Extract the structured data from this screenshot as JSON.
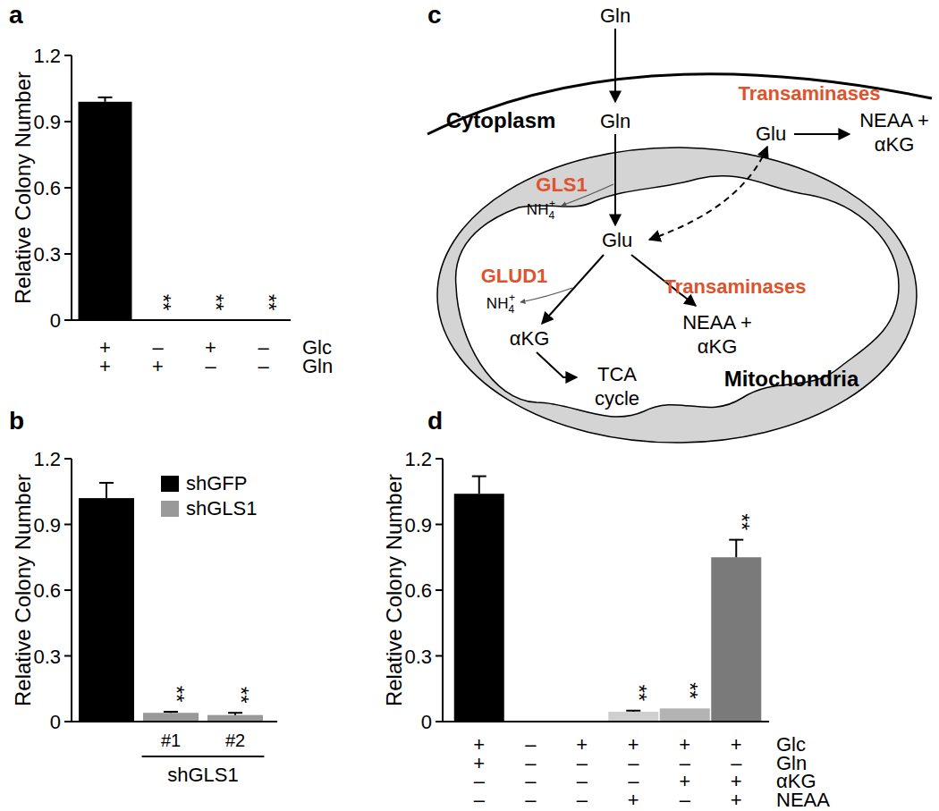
{
  "chart_data": [
    {
      "panel": "a",
      "type": "bar",
      "y_label": "Relative Colony Number",
      "categories": [
        null,
        null,
        null,
        null
      ],
      "values": [
        0.99,
        0,
        0,
        0
      ],
      "errors": [
        0.02,
        null,
        null,
        null
      ],
      "significance": [
        null,
        "**",
        "**",
        "**"
      ],
      "color": "#000000",
      "ylim": [
        0,
        1.2
      ],
      "yticks": [
        0,
        0.3,
        0.6,
        0.9,
        1.2
      ],
      "x_conditions": [
        {
          "label": "Glc",
          "values": [
            "+",
            "–",
            "+",
            "–"
          ]
        },
        {
          "label": "Gln",
          "values": [
            "+",
            "+",
            "–",
            "–"
          ]
        }
      ]
    },
    {
      "panel": "b",
      "type": "bar",
      "y_label": "Relative Colony Number",
      "categories": [
        null,
        "#1",
        "#2"
      ],
      "series": [
        {
          "name": "shGFP",
          "color": "#000000",
          "values": [
            1.02,
            null,
            null
          ],
          "errors": [
            0.07,
            null,
            null
          ],
          "significance": [
            null,
            null,
            null
          ]
        },
        {
          "name": "shGLS1",
          "color": "#999999",
          "values": [
            null,
            0.04,
            0.03
          ],
          "errors": [
            null,
            0.005,
            0.01
          ],
          "significance": [
            null,
            "**",
            "**"
          ]
        }
      ],
      "categories_group": {
        "label": "shGLS1",
        "categories": [
          1,
          2
        ]
      },
      "legend": "top-right",
      "ylim": [
        0,
        1.2
      ],
      "yticks": [
        0,
        0.3,
        0.6,
        0.9,
        1.2
      ]
    },
    {
      "panel": "d",
      "type": "bar",
      "y_label": "Relative Colony Number",
      "categories": [
        null,
        null,
        null,
        null,
        null,
        null
      ],
      "values": [
        1.04,
        0,
        0,
        0.045,
        0.06,
        0.75
      ],
      "errors": [
        0.08,
        null,
        null,
        0.005,
        null,
        0.08
      ],
      "significance": [
        null,
        null,
        null,
        "**",
        "**",
        "**"
      ],
      "colors": [
        "#000000",
        "#000000",
        "#000000",
        "#cfcfcf",
        "#b3b3b3",
        "#7a7a7a"
      ],
      "ylim": [
        0,
        1.2
      ],
      "yticks": [
        0,
        0.3,
        0.6,
        0.9,
        1.2
      ],
      "x_conditions": [
        {
          "label": "Glc",
          "values": [
            "+",
            "–",
            "+",
            "+",
            "+",
            "+"
          ]
        },
        {
          "label": "Gln",
          "values": [
            "+",
            "–",
            "–",
            "–",
            "–",
            "–"
          ]
        },
        {
          "label": "αKG",
          "values": [
            "–",
            "–",
            "–",
            "–",
            "+",
            "+"
          ]
        },
        {
          "label": "NEAA",
          "values": [
            "–",
            "–",
            "–",
            "+",
            "–",
            "+"
          ]
        }
      ]
    }
  ],
  "diagram": {
    "panel": "c",
    "gln_outside": "Gln",
    "gln_cytoplasm": "Gln",
    "cytoplasm": "Cytoplasm",
    "transaminases_cytoplasm": "Transaminases",
    "glu_cytoplasm": "Glu",
    "products_cytoplasm": [
      "NEAA +",
      "αKG"
    ],
    "gls1": "GLS1",
    "ammonium_gls1": {
      "base": "NH",
      "sub": "4",
      "sup": "+"
    },
    "glu_mitochondria": "Glu",
    "glud1": "GLUD1",
    "ammonium_glud1": {
      "base": "NH",
      "sub": "4",
      "sup": "+"
    },
    "akg": "αKG",
    "tca": [
      "TCA",
      "cycle"
    ],
    "transaminases_mitochondria": "Transaminases",
    "products_mitochondria": [
      "NEAA +",
      "αKG"
    ],
    "mitochondria": "Mitochondria"
  }
}
